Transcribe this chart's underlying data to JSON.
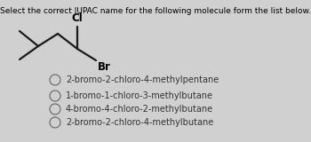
{
  "title": "Select the correct IUPAC name for the following molecule form the list below.",
  "title_fontsize": 6.5,
  "bg_color": "#d0d0d0",
  "options": [
    "2-bromo-2-chloro-4-methylpentane",
    "1-bromo-1-chloro-3-methylbutane",
    "4-bromo-4-chloro-2-methylbutane",
    "2-bromo-2-chloro-4-methylbutane"
  ],
  "options_fontsize": 7.0,
  "mol_color": "#1a1a1a",
  "label_cl": "Cl",
  "label_br": "Br",
  "label_fontsize": 8.5,
  "mol_lw": 1.6
}
